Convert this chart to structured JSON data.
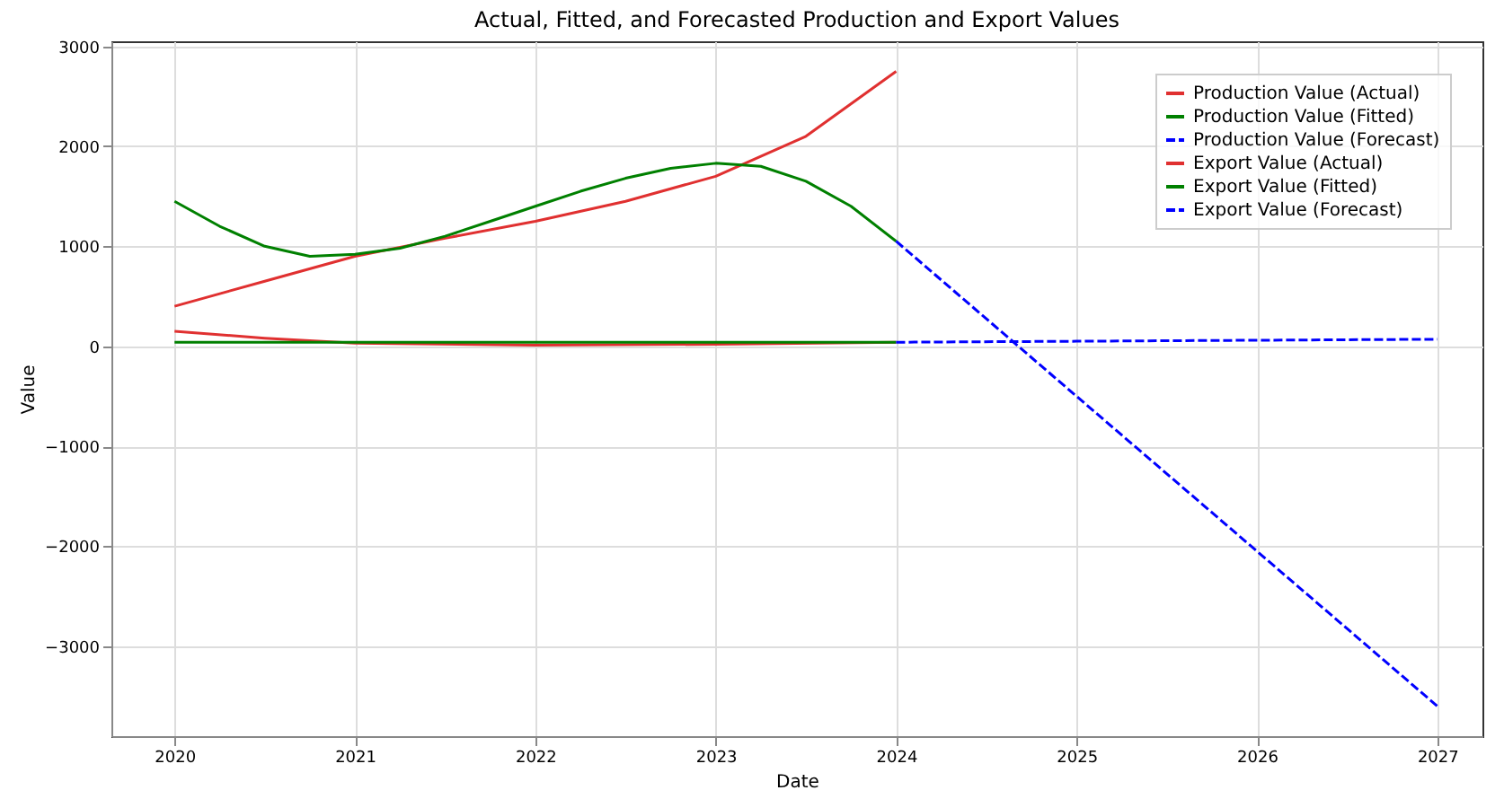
{
  "chart_data": {
    "type": "line",
    "title": "Actual, Fitted, and Forecasted Production and Export Values",
    "xlabel": "Date",
    "ylabel": "Value",
    "xlim": [
      2019.65,
      2027.25
    ],
    "xticks": [
      2020,
      2021,
      2022,
      2023,
      2024,
      2025,
      2026,
      2027
    ],
    "ylim": [
      -3900,
      3050
    ],
    "yticks": [
      -3000,
      -2000,
      -1000,
      0,
      1000,
      2000,
      3000
    ],
    "grid": true,
    "legend": "top right",
    "marker": "none",
    "series": [
      {
        "name": "Production Value (Actual)",
        "color": "#e03030",
        "line_style": "solid",
        "x": [
          2020,
          2020.5,
          2021,
          2021.5,
          2022,
          2022.5,
          2023,
          2023.5,
          2024
        ],
        "values": [
          400,
          650,
          900,
          1080,
          1250,
          1450,
          1700,
          2100,
          2750
        ]
      },
      {
        "name": "Production Value (Fitted)",
        "color": "#008000",
        "line_style": "solid",
        "x": [
          2020,
          2020.25,
          2020.5,
          2020.75,
          2021,
          2021.25,
          2021.5,
          2021.75,
          2022,
          2022.25,
          2022.5,
          2022.75,
          2023,
          2023.25,
          2023.5,
          2023.75,
          2024
        ],
        "values": [
          1450,
          1200,
          1000,
          900,
          920,
          980,
          1100,
          1250,
          1400,
          1550,
          1680,
          1780,
          1830,
          1800,
          1650,
          1400,
          1050
        ]
      },
      {
        "name": "Production Value (Forecast)",
        "color": "#0000ff",
        "line_style": "dashed",
        "x": [
          2024,
          2025,
          2026,
          2027
        ],
        "values": [
          1050,
          -500,
          -2050,
          -3600
        ]
      },
      {
        "name": "Export Value (Actual)",
        "color": "#e03030",
        "line_style": "solid",
        "x": [
          2020,
          2020.5,
          2021,
          2022,
          2023,
          2024
        ],
        "values": [
          150,
          80,
          30,
          10,
          20,
          40
        ]
      },
      {
        "name": "Export Value (Fitted)",
        "color": "#008000",
        "line_style": "solid",
        "x": [
          2020,
          2021,
          2022,
          2023,
          2024
        ],
        "values": [
          40,
          40,
          40,
          40,
          40
        ]
      },
      {
        "name": "Export Value (Forecast)",
        "color": "#0000ff",
        "line_style": "dashed",
        "x": [
          2024,
          2025,
          2026,
          2027
        ],
        "values": [
          40,
          50,
          60,
          70
        ]
      }
    ]
  }
}
